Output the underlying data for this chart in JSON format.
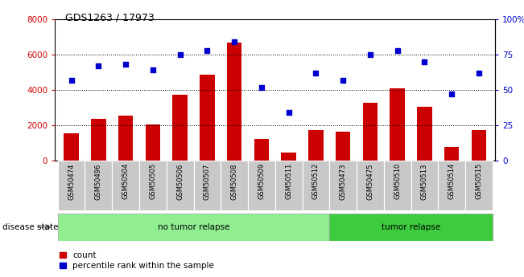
{
  "title": "GDS1263 / 17973",
  "categories": [
    "GSM50474",
    "GSM50496",
    "GSM50504",
    "GSM50505",
    "GSM50506",
    "GSM50507",
    "GSM50508",
    "GSM50509",
    "GSM50511",
    "GSM50512",
    "GSM50473",
    "GSM50475",
    "GSM50510",
    "GSM50513",
    "GSM50514",
    "GSM50515"
  ],
  "counts": [
    1550,
    2350,
    2550,
    2050,
    3750,
    4850,
    6700,
    1250,
    450,
    1750,
    1650,
    3300,
    4100,
    3050,
    800,
    1750
  ],
  "percentiles": [
    57,
    67,
    68,
    64,
    75,
    78,
    84,
    52,
    34,
    62,
    57,
    75,
    78,
    70,
    47,
    62
  ],
  "no_tumor_count": 10,
  "tumor_count": 6,
  "ylim_left": [
    0,
    8000
  ],
  "ylim_right": [
    0,
    100
  ],
  "yticks_left": [
    0,
    2000,
    4000,
    6000,
    8000
  ],
  "yticks_right": [
    0,
    25,
    50,
    75,
    100
  ],
  "bar_color": "#CC0000",
  "scatter_color": "#0000CC",
  "no_tumor_color": "#90EE90",
  "tumor_color": "#3DCC3D",
  "label_bg_color": "#C8C8C8",
  "legend_count_label": "count",
  "legend_pct_label": "percentile rank within the sample",
  "disease_state_label": "disease state",
  "no_tumor_label": "no tumor relapse",
  "tumor_label": "tumor relapse"
}
